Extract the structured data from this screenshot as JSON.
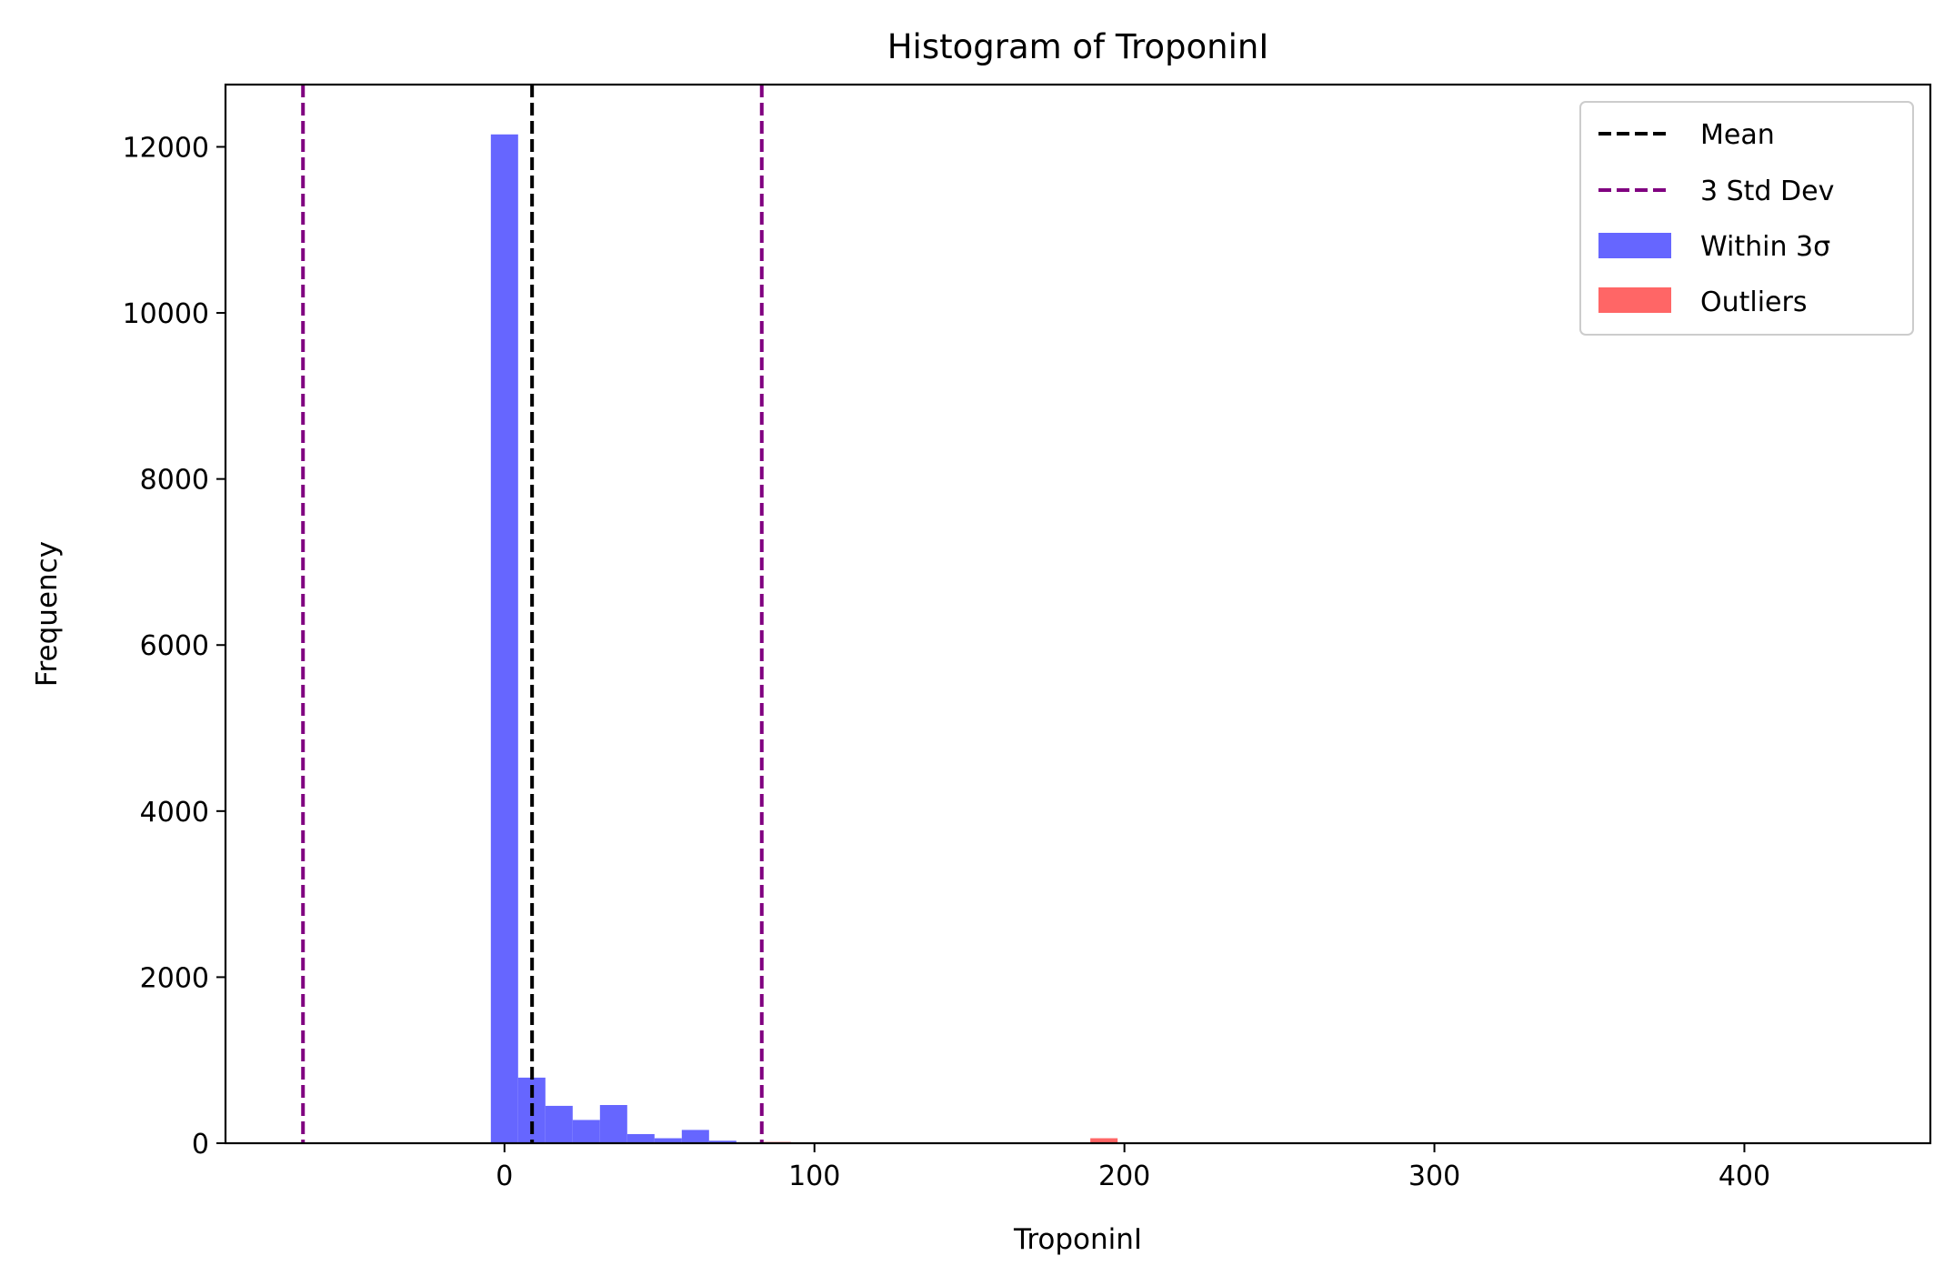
{
  "chart_data": {
    "type": "bar",
    "title": "Histogram of TroponinI",
    "xlabel": "TroponinI",
    "ylabel": "Frequency",
    "xlim": [
      -90,
      460
    ],
    "ylim": [
      0,
      12750
    ],
    "xticks": [
      0,
      100,
      200,
      300,
      400
    ],
    "yticks": [
      0,
      2000,
      4000,
      6000,
      8000,
      10000,
      12000
    ],
    "grid": false,
    "legend_position": "top-right",
    "legend": [
      {
        "key": "mean",
        "label": "Mean",
        "kind": "line"
      },
      {
        "key": "std",
        "label": "3 Std Dev",
        "kind": "line"
      },
      {
        "key": "within",
        "label": "Within 3σ",
        "kind": "patch"
      },
      {
        "key": "outliers",
        "label": "Outliers",
        "kind": "patch"
      }
    ],
    "colors": {
      "within": "#6666ff",
      "outliers": "#ff6666",
      "mean": "#000000",
      "std": "#800080"
    },
    "mean": 8.9,
    "std_lines": [
      -65,
      83
    ],
    "series": [
      {
        "key": "within",
        "bins": [
          {
            "x0": -4.4,
            "x1": 4.4,
            "count": 12150
          },
          {
            "x0": 4.4,
            "x1": 13.2,
            "count": 790
          },
          {
            "x0": 13.2,
            "x1": 22.0,
            "count": 450
          },
          {
            "x0": 22.0,
            "x1": 30.8,
            "count": 280
          },
          {
            "x0": 30.8,
            "x1": 39.6,
            "count": 460
          },
          {
            "x0": 39.6,
            "x1": 48.4,
            "count": 110
          },
          {
            "x0": 48.4,
            "x1": 57.2,
            "count": 60
          },
          {
            "x0": 57.2,
            "x1": 66.0,
            "count": 160
          },
          {
            "x0": 66.0,
            "x1": 74.8,
            "count": 30
          },
          {
            "x0": 74.8,
            "x1": 83.6,
            "count": 12
          }
        ]
      },
      {
        "key": "outliers",
        "bins": [
          {
            "x0": 83.6,
            "x1": 92.4,
            "count": 15
          },
          {
            "x0": 92.4,
            "x1": 101.2,
            "count": 8
          },
          {
            "x0": 189.0,
            "x1": 197.8,
            "count": 60
          },
          {
            "x0": 197.8,
            "x1": 206.6,
            "count": 6
          }
        ]
      }
    ]
  }
}
